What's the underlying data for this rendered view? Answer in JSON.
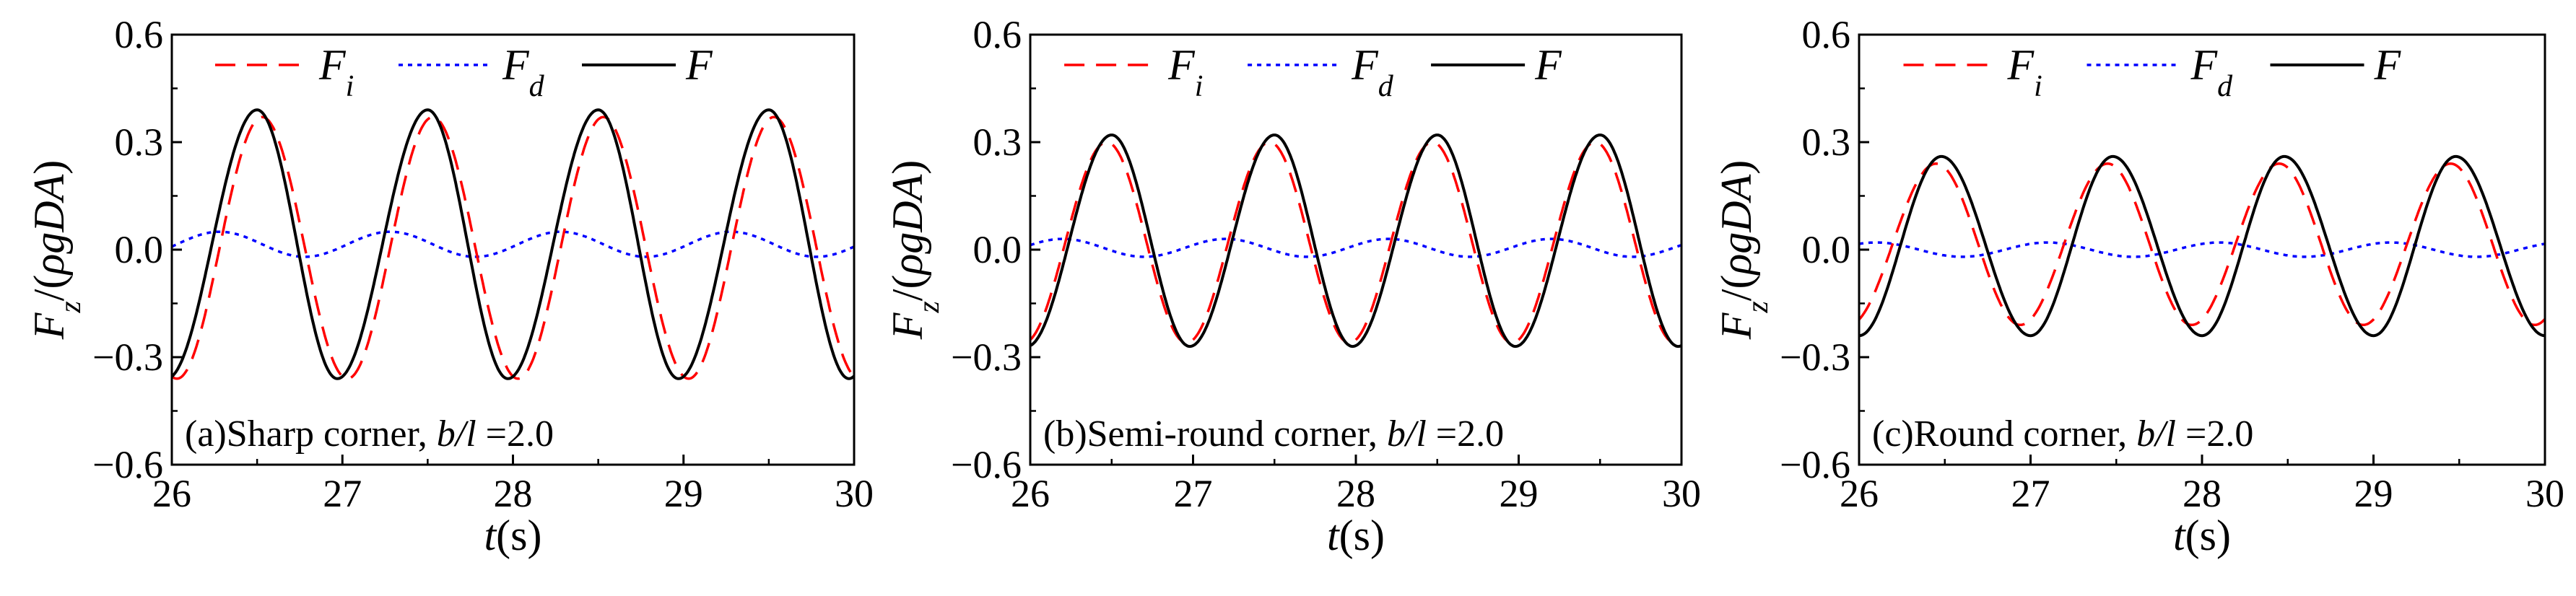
{
  "figure": {
    "background": "#ffffff"
  },
  "series_styles": {
    "Fi": {
      "color": "#ff0000",
      "dash": "dashed"
    },
    "Fd": {
      "color": "#0000ff",
      "dash": "dotted"
    },
    "F": {
      "color": "#000000",
      "dash": "solid"
    }
  },
  "legend": {
    "entries": [
      {
        "key": "Fi",
        "base": "F",
        "sub": "i"
      },
      {
        "key": "Fd",
        "base": "F",
        "sub": "d"
      },
      {
        "key": "F",
        "base": "F",
        "sub": ""
      }
    ]
  },
  "chart_data": [
    {
      "type": "line",
      "title": "",
      "xlabel": {
        "italic": "t",
        "rest": "(s)"
      },
      "ylabel": {
        "base": "F",
        "sub": "z",
        "rest": "/(ρgDA)"
      },
      "xlim": [
        26,
        30
      ],
      "ylim": [
        -0.6,
        0.6
      ],
      "xticks": [
        "26",
        "27",
        "28",
        "29",
        "30"
      ],
      "yticks": [
        "-0.6",
        "-0.3",
        "0.0",
        "0.3",
        "0.6"
      ],
      "grid": false,
      "legend_position": "top",
      "panel_label": {
        "prefix": "(a)Sharp corner, ",
        "italic": "b/l",
        "suffix": " =2.0"
      },
      "series": [
        {
          "name": "Fi",
          "peaks_t": [
            26.53,
            27.53,
            28.53,
            29.53
          ],
          "peaks_v": [
            0.37,
            0.37,
            0.37,
            0.37
          ],
          "troughs_t": [
            26.03,
            27.03,
            28.03,
            29.03,
            30.03
          ],
          "troughs_v": [
            -0.36,
            -0.36,
            -0.36,
            -0.36,
            -0.36
          ]
        },
        {
          "name": "Fd",
          "peaks_t": [
            26.28,
            27.28,
            28.28,
            29.28
          ],
          "peaks_v": [
            0.05,
            0.05,
            0.05,
            0.05
          ],
          "troughs_t": [
            25.78,
            26.78,
            27.78,
            28.78,
            29.78
          ],
          "troughs_v": [
            -0.02,
            -0.02,
            -0.02,
            -0.02,
            -0.02
          ]
        },
        {
          "name": "F",
          "peaks_t": [
            26.5,
            27.5,
            28.5,
            29.5
          ],
          "peaks_v": [
            0.39,
            0.39,
            0.39,
            0.39
          ],
          "troughs_t": [
            25.97,
            26.97,
            27.97,
            28.97,
            29.97
          ],
          "troughs_v": [
            -0.36,
            -0.36,
            -0.36,
            -0.36,
            -0.36
          ]
        }
      ]
    },
    {
      "type": "line",
      "title": "",
      "xlabel": {
        "italic": "t",
        "rest": "(s)"
      },
      "ylabel": {
        "base": "F",
        "sub": "z",
        "rest": "/(ρgDA)"
      },
      "xlim": [
        26,
        30
      ],
      "ylim": [
        -0.6,
        0.6
      ],
      "xticks": [
        "26",
        "27",
        "28",
        "29",
        "30"
      ],
      "yticks": [
        "-0.6",
        "-0.3",
        "0.0",
        "0.3",
        "0.6"
      ],
      "grid": false,
      "legend_position": "top",
      "panel_label": {
        "prefix": "(b)Semi-round corner, ",
        "italic": "b/l",
        "suffix": " =2.0"
      },
      "series": [
        {
          "name": "Fi",
          "peaks_t": [
            26.47,
            27.47,
            28.47,
            29.47
          ],
          "peaks_v": [
            0.3,
            0.3,
            0.3,
            0.3
          ],
          "troughs_t": [
            25.96,
            26.96,
            27.96,
            28.96,
            29.96
          ],
          "troughs_v": [
            -0.26,
            -0.26,
            -0.26,
            -0.26,
            -0.26
          ]
        },
        {
          "name": "Fd",
          "peaks_t": [
            26.2,
            27.2,
            28.2,
            29.2
          ],
          "peaks_v": [
            0.03,
            0.03,
            0.03,
            0.03
          ],
          "troughs_t": [
            25.7,
            26.7,
            27.7,
            28.7,
            29.7
          ],
          "troughs_v": [
            -0.02,
            -0.02,
            -0.02,
            -0.02,
            -0.02
          ]
        },
        {
          "name": "F",
          "peaks_t": [
            26.5,
            27.5,
            28.5,
            29.5
          ],
          "peaks_v": [
            0.32,
            0.32,
            0.32,
            0.32
          ],
          "troughs_t": [
            25.98,
            26.98,
            27.98,
            28.98,
            29.98
          ],
          "troughs_v": [
            -0.27,
            -0.27,
            -0.27,
            -0.27,
            -0.27
          ]
        }
      ]
    },
    {
      "type": "line",
      "title": "",
      "xlabel": {
        "italic": "t",
        "rest": "(s)"
      },
      "ylabel": {
        "base": "F",
        "sub": "z",
        "rest": "/(ρgDA)"
      },
      "xlim": [
        26,
        30
      ],
      "ylim": [
        -0.6,
        0.6
      ],
      "xticks": [
        "26",
        "27",
        "28",
        "29",
        "30"
      ],
      "yticks": [
        "-0.6",
        "-0.3",
        "0.0",
        "0.3",
        "0.6"
      ],
      "grid": false,
      "legend_position": "top",
      "panel_label": {
        "prefix": "(c)Round corner, ",
        "italic": "b/l",
        "suffix": " =2.0"
      },
      "series": [
        {
          "name": "Fi",
          "peaks_t": [
            26.45,
            27.45,
            28.45,
            29.45
          ],
          "peaks_v": [
            0.24,
            0.24,
            0.24,
            0.24
          ],
          "troughs_t": [
            25.94,
            26.94,
            27.94,
            28.94,
            29.94
          ],
          "troughs_v": [
            -0.21,
            -0.21,
            -0.21,
            -0.21,
            -0.21
          ]
        },
        {
          "name": "Fd",
          "peaks_t": [
            26.1,
            27.1,
            28.1,
            29.1
          ],
          "peaks_v": [
            0.02,
            0.02,
            0.02,
            0.02
          ],
          "troughs_t": [
            25.6,
            26.6,
            27.6,
            28.6,
            29.6
          ],
          "troughs_v": [
            -0.02,
            -0.02,
            -0.02,
            -0.02,
            -0.02
          ]
        },
        {
          "name": "F",
          "peaks_t": [
            26.48,
            27.48,
            28.48,
            29.48
          ],
          "peaks_v": [
            0.26,
            0.26,
            0.26,
            0.26
          ],
          "troughs_t": [
            26.0,
            27.0,
            28.0,
            29.0,
            30.0
          ],
          "troughs_v": [
            -0.24,
            -0.24,
            -0.24,
            -0.24,
            -0.24
          ]
        }
      ]
    }
  ]
}
